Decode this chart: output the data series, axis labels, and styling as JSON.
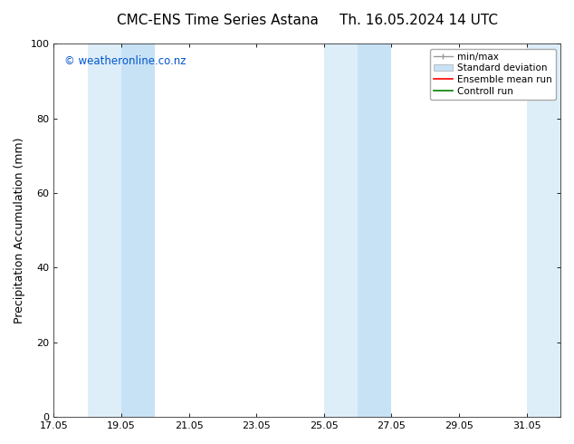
{
  "title_left": "CMC-ENS Time Series Astana",
  "title_right": "Th. 16.05.2024 14 UTC",
  "ylabel": "Precipitation Accumulation (mm)",
  "watermark": "© weatheronline.co.nz",
  "xlim_left": 17.05,
  "xlim_right": 32.05,
  "ylim_bottom": 0,
  "ylim_top": 100,
  "xticks": [
    17.05,
    19.05,
    21.05,
    23.05,
    25.05,
    27.05,
    29.05,
    31.05
  ],
  "yticks": [
    0,
    20,
    40,
    60,
    80,
    100
  ],
  "shaded_bands": [
    {
      "x_start": 18.05,
      "x_end": 19.05,
      "color": "#ddeef9"
    },
    {
      "x_start": 19.05,
      "x_end": 20.05,
      "color": "#c8e2f5"
    },
    {
      "x_start": 25.05,
      "x_end": 26.05,
      "color": "#ddeef9"
    },
    {
      "x_start": 26.05,
      "x_end": 27.05,
      "color": "#c8e2f5"
    },
    {
      "x_start": 31.05,
      "x_end": 32.05,
      "color": "#ddeef9"
    }
  ],
  "legend_labels": [
    "min/max",
    "Standard deviation",
    "Ensemble mean run",
    "Controll run"
  ],
  "legend_colors": [
    "#999999",
    "#c0d8e8",
    "#ff0000",
    "#008000"
  ],
  "bg_color": "#ffffff",
  "title_fontsize": 11,
  "axis_fontsize": 9,
  "watermark_color": "#0055cc",
  "tick_label_fontsize": 8,
  "grid_color": "#cccccc",
  "spine_color": "#333333"
}
